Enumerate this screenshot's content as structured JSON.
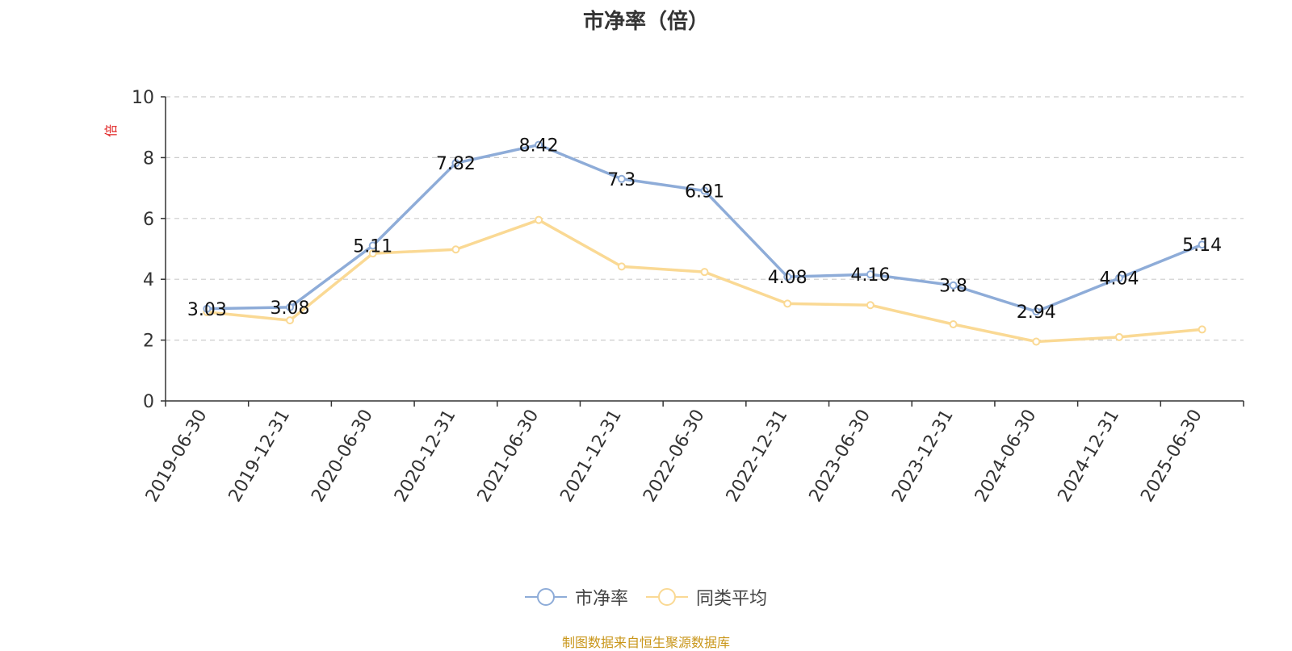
{
  "chart_data": {
    "type": "line",
    "title": "市净率（倍）",
    "ylabel": "倍",
    "xlabel": "",
    "categories": [
      "2019-06-30",
      "2019-12-31",
      "2020-06-30",
      "2020-12-31",
      "2021-06-30",
      "2021-12-31",
      "2022-06-30",
      "2022-12-31",
      "2023-06-30",
      "2023-12-31",
      "2024-06-30",
      "2024-12-31",
      "2025-06-30"
    ],
    "ylim": [
      0,
      10
    ],
    "yticks": [
      "0",
      "2",
      "4",
      "6",
      "8",
      "10"
    ],
    "grid": "horizontal dashed",
    "legend_position": "bottom",
    "series": [
      {
        "name": "市净率",
        "color": "#8eacd8",
        "values": [
          3.03,
          3.08,
          5.11,
          7.82,
          8.42,
          7.3,
          6.91,
          4.08,
          4.16,
          3.8,
          2.94,
          4.04,
          5.14
        ],
        "labels": [
          "3.03",
          "3.08",
          "5.11",
          "7.82",
          "8.42",
          "7.3",
          "6.91",
          "4.08",
          "4.16",
          "3.8",
          "2.94",
          "4.04",
          "5.14"
        ]
      },
      {
        "name": "同类平均",
        "color": "#fad994",
        "values": [
          2.92,
          2.65,
          4.85,
          4.98,
          5.95,
          4.42,
          4.24,
          3.2,
          3.15,
          2.52,
          1.95,
          2.1,
          2.35
        ]
      }
    ]
  },
  "source_note": "制图数据来自恒生聚源数据库",
  "colors": {
    "axis": "#333333",
    "grid": "#cccccc",
    "ylabel": "#e02020",
    "source": "#c9961a"
  }
}
